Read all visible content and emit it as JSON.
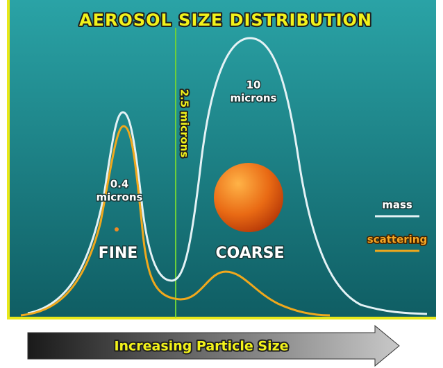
{
  "title": "AEROSOL SIZE DISTRIBUTION",
  "divider_label": "2.5 microns",
  "annotations": [
    {
      "lines": [
        "10",
        "microns"
      ]
    },
    {
      "lines": [
        "0.4",
        "microns"
      ]
    }
  ],
  "modes": [
    "FINE",
    "COARSE"
  ],
  "legend": [
    "mass",
    "scattering"
  ],
  "arrow_label": "Increasing Particle Size"
}
